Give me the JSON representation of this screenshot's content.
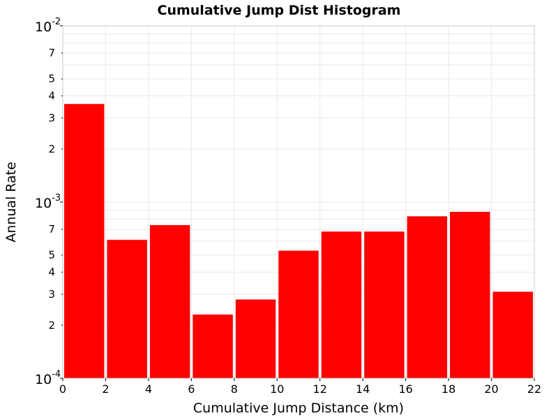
{
  "chart_data": {
    "type": "bar",
    "title": "Cumulative Jump Dist Histogram",
    "xlabel": "Cumulative Jump Distance (km)",
    "ylabel": "Annual Rate",
    "y_scale": "log",
    "xlim": [
      0,
      22
    ],
    "ylim": [
      0.0001,
      0.01
    ],
    "grid": true,
    "bar_color": "#ff0000",
    "x_ticks": [
      "0",
      "2",
      "4",
      "6",
      "8",
      "10",
      "12",
      "14",
      "16",
      "18",
      "20",
      "22"
    ],
    "y_major_ticks": [
      {
        "value": 0.0001,
        "base": "10",
        "exp": "-4"
      },
      {
        "value": 0.001,
        "base": "10",
        "exp": "-3"
      },
      {
        "value": 0.01,
        "base": "10",
        "exp": "-2"
      }
    ],
    "y_minor_tick_labels": [
      {
        "value": 0.0002,
        "label": "2"
      },
      {
        "value": 0.0003,
        "label": "3"
      },
      {
        "value": 0.0004,
        "label": "4"
      },
      {
        "value": 0.0005,
        "label": "5"
      },
      {
        "value": 0.0007,
        "label": "7"
      },
      {
        "value": 0.002,
        "label": "2"
      },
      {
        "value": 0.003,
        "label": "3"
      },
      {
        "value": 0.004,
        "label": "4"
      },
      {
        "value": 0.005,
        "label": "5"
      },
      {
        "value": 0.007,
        "label": "7"
      }
    ],
    "bins": [
      {
        "x0": 0,
        "x1": 2,
        "value": 0.0036
      },
      {
        "x0": 2,
        "x1": 4,
        "value": 0.00061
      },
      {
        "x0": 4,
        "x1": 6,
        "value": 0.00074
      },
      {
        "x0": 6,
        "x1": 8,
        "value": 0.00023
      },
      {
        "x0": 8,
        "x1": 10,
        "value": 0.00028
      },
      {
        "x0": 10,
        "x1": 12,
        "value": 0.00053
      },
      {
        "x0": 12,
        "x1": 14,
        "value": 0.00068
      },
      {
        "x0": 14,
        "x1": 16,
        "value": 0.00068
      },
      {
        "x0": 16,
        "x1": 18,
        "value": 0.00083
      },
      {
        "x0": 18,
        "x1": 20,
        "value": 0.00088
      },
      {
        "x0": 20,
        "x1": 22,
        "value": 0.00031
      }
    ]
  }
}
